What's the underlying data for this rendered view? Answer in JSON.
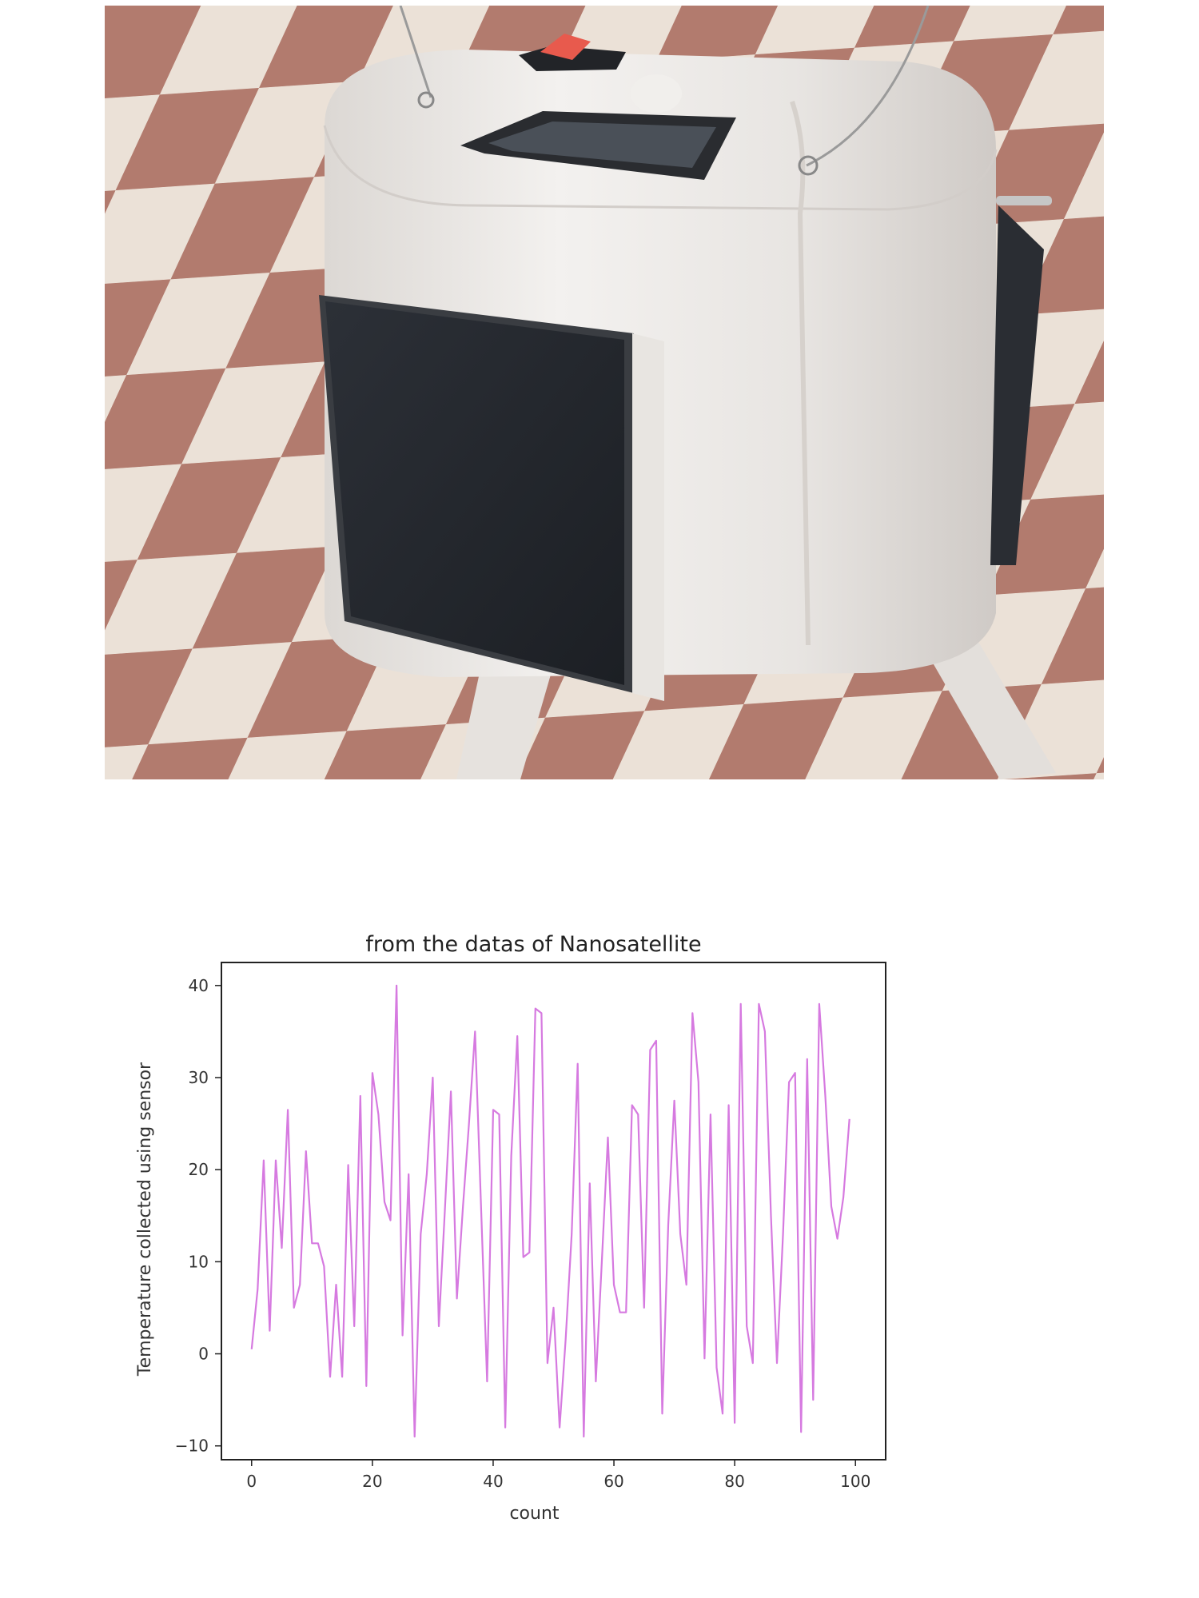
{
  "photo": {
    "icons": [
      "nanosatellite-photo"
    ]
  },
  "colors": {
    "line": "#d67ae0",
    "floor_dark": "#a8695a",
    "floor_light": "#e9ddd2",
    "body": "#eceae8",
    "panel": "#23262c"
  },
  "chart_data": {
    "type": "line",
    "title": "from the datas of Nanosatellite",
    "xlabel": "count",
    "ylabel": "Temperature collected using sensor",
    "xlim": [
      -5,
      105
    ],
    "ylim": [
      -11.5,
      42.5
    ],
    "xticks": [
      0,
      20,
      40,
      60,
      80,
      100
    ],
    "yticks": [
      -10,
      0,
      10,
      20,
      30,
      40
    ],
    "xtick_labels": [
      "0",
      "20",
      "40",
      "60",
      "80",
      "100"
    ],
    "ytick_labels": [
      "−10",
      "0",
      "10",
      "20",
      "30",
      "40"
    ],
    "grid": false,
    "series": [
      {
        "x": [
          0,
          1,
          2,
          3,
          4,
          5,
          6,
          7,
          8,
          9,
          10,
          11,
          12,
          13,
          14,
          15,
          16,
          17,
          18,
          19,
          20,
          21,
          22,
          23,
          24,
          25,
          26,
          27,
          28,
          29,
          30,
          31,
          32,
          33,
          34,
          35,
          36,
          37,
          38,
          39,
          40,
          41,
          42,
          43,
          44,
          45,
          46,
          47,
          48,
          49,
          50,
          51,
          52,
          53,
          54,
          55,
          56,
          57,
          58,
          59,
          60,
          61,
          62,
          63,
          64,
          65,
          66,
          67,
          68,
          69,
          70,
          71,
          72,
          73,
          74,
          75,
          76,
          77,
          78,
          79,
          80,
          81,
          82,
          83,
          84,
          85,
          86,
          87,
          88,
          89,
          90,
          91,
          92,
          93,
          94,
          95,
          96,
          97,
          98,
          99
        ],
        "values": [
          0.5,
          7,
          21,
          2.5,
          21,
          11.5,
          26.5,
          5,
          7.5,
          22,
          12,
          12,
          9.5,
          -2.5,
          7.5,
          -2.5,
          20.5,
          3,
          28,
          -3.5,
          30.5,
          26,
          16.5,
          14.5,
          40,
          2,
          19.5,
          -9,
          13,
          19.5,
          30,
          3,
          15.5,
          28.5,
          6,
          16,
          25,
          35,
          16,
          -3,
          26.5,
          26,
          -8,
          21.5,
          34.5,
          10.5,
          11,
          37.5,
          37,
          -1,
          5,
          -8,
          1.5,
          13,
          31.5,
          -9,
          18.5,
          -3,
          10,
          23.5,
          7.5,
          4.5,
          4.5,
          27,
          26,
          5,
          33,
          34,
          -6.5,
          14,
          27.5,
          13,
          7.5,
          37,
          29.5,
          -0.5,
          26,
          -1.5,
          -6.5,
          27,
          -7.5,
          38,
          3,
          -1,
          38,
          35,
          15,
          -1,
          13,
          29.5,
          30.5,
          -8.5,
          32,
          -5,
          38,
          28,
          16,
          12.5,
          17,
          25.5
        ]
      }
    ]
  }
}
